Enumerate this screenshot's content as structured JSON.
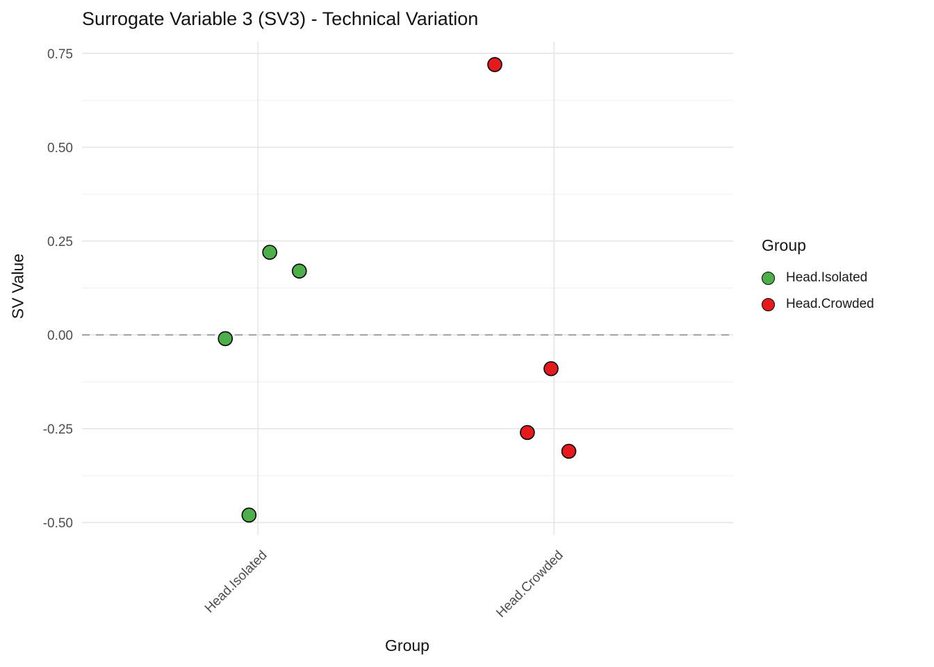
{
  "chart_data": {
    "type": "scatter",
    "title": "Surrogate Variable 3 (SV3) - Technical Variation",
    "xlabel": "Group",
    "ylabel": "SV Value",
    "x_categories": [
      "Head.Isolated",
      "Head.Crowded"
    ],
    "x_category_positions": [
      1,
      2
    ],
    "xlim": [
      0.406,
      2.605
    ],
    "ylim": [
      -0.533,
      0.781
    ],
    "yticks": [
      0.75,
      0.5,
      0.25,
      0,
      -0.25,
      -0.5
    ],
    "ytick_labels": [
      "0.75",
      "0.50",
      "0.25",
      "0.00",
      "-0.25",
      "-0.50"
    ],
    "yticks_minor": [
      0.625,
      0.375,
      0.125,
      -0.125,
      -0.375
    ],
    "grid": {
      "major_color": "#e4e4e4",
      "minor_color": "#f0f0f0",
      "on": true
    },
    "reference_line": {
      "y": 0,
      "style": "dashed",
      "color": "#a6a6a6"
    },
    "point_style": {
      "radius": 10,
      "stroke": "#000000",
      "stroke_width": 1.6
    },
    "legend": {
      "title": "Group",
      "position": "right"
    },
    "series": [
      {
        "name": "Head.Isolated",
        "color": "#4daf4a",
        "points": [
          {
            "x": 1.04,
            "y": 0.22
          },
          {
            "x": 1.14,
            "y": 0.17
          },
          {
            "x": 0.89,
            "y": -0.01
          },
          {
            "x": 0.97,
            "y": -0.48
          }
        ]
      },
      {
        "name": "Head.Crowded",
        "color": "#e41a1c",
        "points": [
          {
            "x": 1.8,
            "y": 0.72
          },
          {
            "x": 1.99,
            "y": -0.09
          },
          {
            "x": 1.91,
            "y": -0.26
          },
          {
            "x": 2.05,
            "y": -0.31
          }
        ]
      }
    ]
  }
}
